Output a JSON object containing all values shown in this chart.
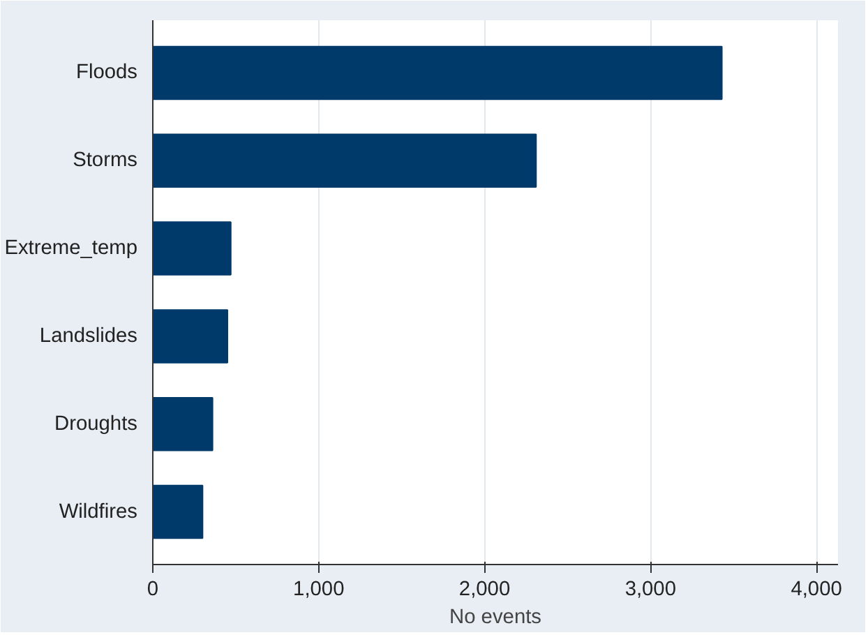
{
  "chart_data": {
    "type": "bar",
    "orientation": "horizontal",
    "xlabel": "No events",
    "categories": [
      "Floods",
      "Storms",
      "Extreme_temp",
      "Landslides",
      "Droughts",
      "Wildfires"
    ],
    "values": [
      3430,
      2310,
      470,
      450,
      360,
      300
    ],
    "color": "#003a6b",
    "xlim": [
      0,
      4130
    ],
    "xticks": [
      0,
      {
        "value": 1000,
        "label": "1,000"
      },
      {
        "value": 2000,
        "label": "2,000"
      },
      {
        "value": 3000,
        "label": "3,000"
      },
      {
        "value": 4000,
        "label": "4,000"
      }
    ],
    "grid": "x"
  }
}
